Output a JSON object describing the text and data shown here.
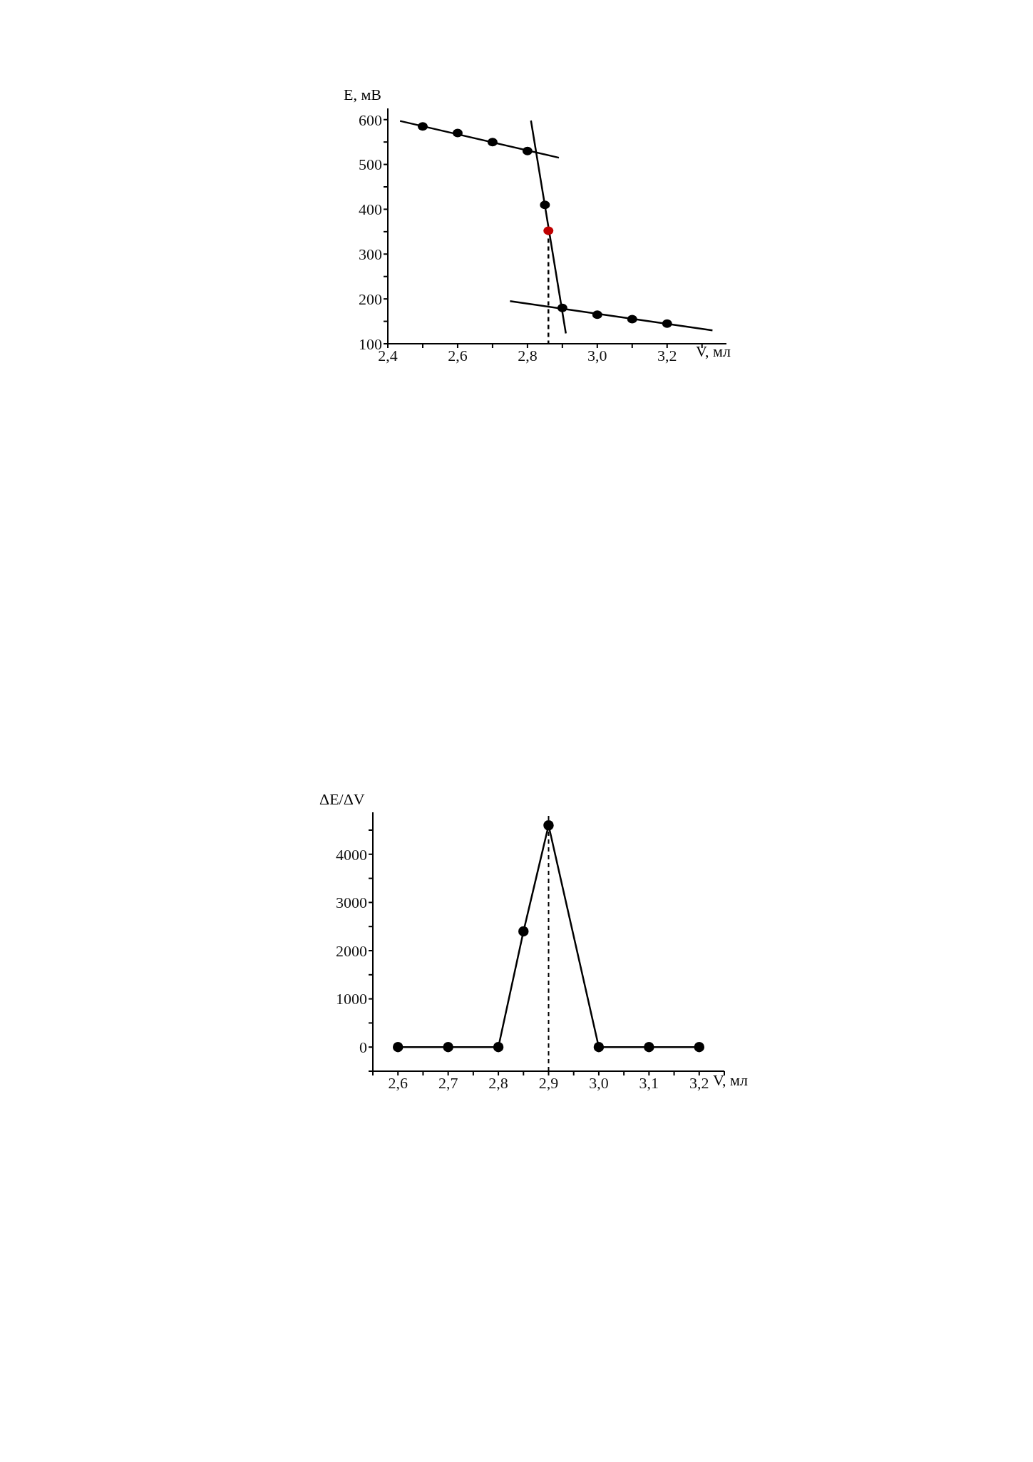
{
  "chart_data": [
    {
      "type": "scatter",
      "xlabel": "V, мл",
      "ylabel": "E, мВ",
      "xlim": [
        2.4,
        3.37
      ],
      "ylim": [
        100,
        625
      ],
      "xticks": [
        {
          "value": 2.4,
          "label": "2,4"
        },
        {
          "value": 2.5,
          "label": null
        },
        {
          "value": 2.6,
          "label": "2,6"
        },
        {
          "value": 2.7,
          "label": null
        },
        {
          "value": 2.8,
          "label": "2,8"
        },
        {
          "value": 2.9,
          "label": null
        },
        {
          "value": 3.0,
          "label": "3,0"
        },
        {
          "value": 3.1,
          "label": null
        },
        {
          "value": 3.2,
          "label": "3,2"
        },
        {
          "value": 3.3,
          "label": null
        }
      ],
      "yticks": [
        100,
        {
          "value": 150,
          "label": null
        },
        200,
        {
          "value": 250,
          "label": null
        },
        300,
        {
          "value": 350,
          "label": null
        },
        400,
        {
          "value": 450,
          "label": null
        },
        500,
        {
          "value": 550,
          "label": null
        },
        600
      ],
      "grid": false,
      "legend": false,
      "marker": "circle",
      "series": [
        {
          "type": "line",
          "color": "#000000",
          "marker": "none",
          "x": [
            2.435,
            2.89
          ],
          "values": [
            597,
            515
          ]
        },
        {
          "type": "line",
          "color": "#000000",
          "marker": "none",
          "x": [
            2.81,
            2.91
          ],
          "values": [
            598,
            123
          ]
        },
        {
          "type": "line",
          "color": "#000000",
          "marker": "none",
          "x": [
            2.75,
            3.33
          ],
          "values": [
            195,
            130
          ]
        },
        {
          "type": "line",
          "color": "#000000",
          "marker": "none",
          "line_style": "dashed",
          "x": [
            2.86,
            2.86
          ],
          "values": [
            352,
            100
          ]
        },
        {
          "color": "#000000",
          "x": [
            2.5,
            2.6,
            2.7,
            2.8,
            2.85,
            2.9,
            3.0,
            3.1,
            3.2
          ],
          "values": [
            585,
            570,
            550,
            530,
            410,
            180,
            165,
            155,
            145
          ]
        },
        {
          "color": "#c00000",
          "x": [
            2.86
          ],
          "values": [
            352
          ]
        }
      ]
    },
    {
      "type": "line",
      "xlabel": "V, мл",
      "ylabel": "ΔE/ΔV",
      "xlim": [
        2.55,
        3.25
      ],
      "ylim": [
        -500,
        4870
      ],
      "xticks": [
        {
          "value": 2.55,
          "label": null
        },
        {
          "value": 2.6,
          "label": "2,6"
        },
        {
          "value": 2.65,
          "label": null
        },
        {
          "value": 2.7,
          "label": "2,7"
        },
        {
          "value": 2.75,
          "label": null
        },
        {
          "value": 2.8,
          "label": "2,8"
        },
        {
          "value": 2.85,
          "label": null
        },
        {
          "value": 2.9,
          "label": "2,9"
        },
        {
          "value": 2.95,
          "label": null
        },
        {
          "value": 3.0,
          "label": "3,0"
        },
        {
          "value": 3.05,
          "label": null
        },
        {
          "value": 3.1,
          "label": "3,1"
        },
        {
          "value": 3.15,
          "label": null
        },
        {
          "value": 3.2,
          "label": "3,2"
        },
        {
          "value": 3.25,
          "label": null
        }
      ],
      "yticks": [
        {
          "value": -500,
          "label": null
        },
        0,
        {
          "value": 500,
          "label": null
        },
        1000,
        {
          "value": 1500,
          "label": null
        },
        2000,
        {
          "value": 2500,
          "label": null
        },
        3000,
        {
          "value": 3500,
          "label": null
        },
        4000,
        {
          "value": 4500,
          "label": null
        }
      ],
      "grid": false,
      "legend": false,
      "marker": "circle",
      "ref_lines": [
        {
          "axis": "x",
          "value": 2.9,
          "color": "#000000",
          "line_style": "dashed"
        }
      ],
      "series": [
        {
          "color": "#000000",
          "x": [
            2.6,
            2.7,
            2.8,
            2.85,
            2.9,
            3.0,
            3.1,
            3.2
          ],
          "values": [
            0,
            0,
            0,
            2400,
            4600,
            0,
            0,
            0
          ]
        }
      ]
    }
  ]
}
